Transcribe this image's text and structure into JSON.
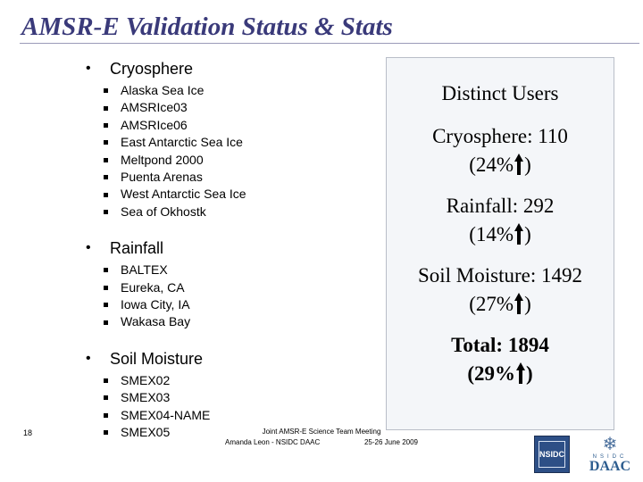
{
  "title": "AMSR-E Validation Status & Stats",
  "sections": [
    {
      "label": "Cryosphere",
      "items": [
        "Alaska Sea Ice",
        "AMSRIce03",
        "AMSRIce06",
        "East Antarctic Sea Ice",
        "Meltpond 2000",
        "Puenta Arenas",
        "West Antarctic Sea Ice",
        "Sea of Okhostk"
      ]
    },
    {
      "label": "Rainfall",
      "items": [
        "BALTEX",
        "Eureka, CA",
        "Iowa City, IA",
        "Wakasa Bay"
      ]
    },
    {
      "label": "Soil Moisture",
      "items": [
        "SMEX02",
        "SMEX03",
        "SMEX04-NAME",
        "SMEX05"
      ]
    }
  ],
  "stats": {
    "heading": "Distinct Users",
    "cryosphere": {
      "label": "Cryosphere: 110",
      "pct": "(24%",
      "close": ")"
    },
    "rainfall": {
      "label": "Rainfall: 292",
      "pct": "(14%",
      "close": ")"
    },
    "soil": {
      "label": "Soil Moisture: 1492",
      "pct": "(27%",
      "close": ")"
    },
    "total": {
      "label": "Total: 1894",
      "pct": "(29%",
      "close": ")"
    },
    "trend_icon": "up-arrow-icon"
  },
  "footer": {
    "slide_number": "18",
    "event": "Joint AMSR-E Science Team Meeting",
    "presenter": "Amanda Leon - NSIDC DAAC",
    "dates": "25-26 June 2009"
  },
  "logos": {
    "nsidc": "NSIDC",
    "daac_small": "NSIDC",
    "daac_big": "DAAC"
  }
}
